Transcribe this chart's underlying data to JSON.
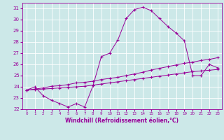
{
  "xlabel": "Windchill (Refroidissement éolien,°C)",
  "xlim": [
    -0.5,
    23.5
  ],
  "ylim": [
    22,
    31.5
  ],
  "yticks": [
    22,
    23,
    24,
    25,
    26,
    27,
    28,
    29,
    30,
    31
  ],
  "xticks": [
    0,
    1,
    2,
    3,
    4,
    5,
    6,
    7,
    8,
    9,
    10,
    11,
    12,
    13,
    14,
    15,
    16,
    17,
    18,
    19,
    20,
    21,
    22,
    23
  ],
  "background_color": "#cce8e8",
  "line_color": "#990099",
  "grid_color": "#ffffff",
  "series": [
    {
      "x": [
        0,
        1,
        2,
        3,
        4,
        5,
        6,
        7,
        8,
        9,
        10,
        11,
        12,
        13,
        14,
        15,
        16,
        17,
        18,
        19,
        20,
        21,
        22,
        23
      ],
      "y": [
        23.7,
        24.0,
        23.2,
        22.8,
        22.5,
        22.2,
        22.5,
        22.2,
        24.1,
        26.7,
        27.0,
        28.2,
        30.1,
        30.9,
        31.1,
        30.8,
        30.1,
        29.4,
        28.8,
        28.1,
        25.0,
        25.0,
        26.0,
        25.7
      ]
    },
    {
      "x": [
        0,
        1,
        2,
        3,
        4,
        5,
        6,
        7,
        8,
        9,
        10,
        11,
        12,
        13,
        14,
        15,
        16,
        17,
        18,
        19,
        20,
        21,
        22,
        23
      ],
      "y": [
        23.7,
        23.8,
        23.9,
        24.05,
        24.1,
        24.2,
        24.35,
        24.4,
        24.5,
        24.65,
        24.75,
        24.85,
        25.0,
        25.15,
        25.3,
        25.5,
        25.65,
        25.8,
        25.95,
        26.1,
        26.2,
        26.35,
        26.45,
        26.6
      ]
    },
    {
      "x": [
        0,
        1,
        2,
        3,
        4,
        5,
        6,
        7,
        8,
        9,
        10,
        11,
        12,
        13,
        14,
        15,
        16,
        17,
        18,
        19,
        20,
        21,
        22,
        23
      ],
      "y": [
        23.7,
        23.75,
        23.8,
        23.85,
        23.9,
        23.95,
        24.0,
        24.05,
        24.15,
        24.25,
        24.35,
        24.45,
        24.55,
        24.65,
        24.75,
        24.85,
        24.95,
        25.05,
        25.15,
        25.25,
        25.35,
        25.42,
        25.48,
        25.55
      ]
    }
  ]
}
